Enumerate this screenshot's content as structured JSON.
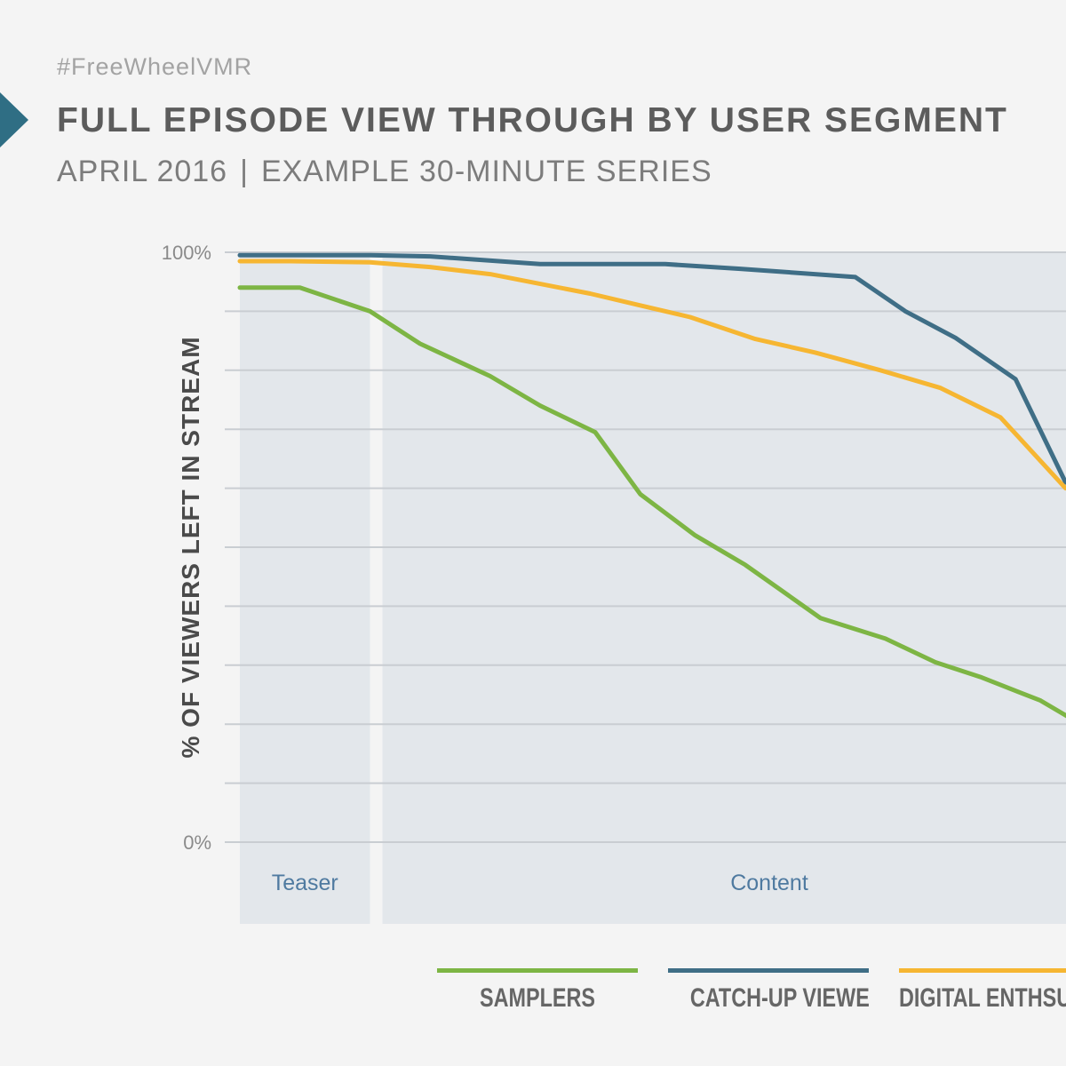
{
  "header": {
    "hashtag": "#FreeWheelVMR",
    "title": "FULL EPISODE VIEW THROUGH BY USER SEGMENT",
    "subtitle_left": "APRIL 2016",
    "subtitle_sep": "|",
    "subtitle_right": "EXAMPLE 30-MINUTE SERIES"
  },
  "colors": {
    "background": "#f4f4f4",
    "panel": "#e3e7eb",
    "grid": "#c9cdd2",
    "arrow": "#2f6e84",
    "region_label": "#4f7aa0"
  },
  "chart_data": {
    "type": "line",
    "ylabel": "% OF VIEWERS LEFT IN STREAM",
    "y_tick_labels": [
      "100%",
      "0%"
    ],
    "ylim": [
      0,
      100
    ],
    "xlim": [
      0,
      30
    ],
    "grid": true,
    "legend_position": "bottom",
    "regions": [
      {
        "label": "Teaser",
        "start": 0,
        "end": 2.6
      },
      {
        "label": "Content",
        "start": 2.85,
        "end": 30
      }
    ],
    "series": [
      {
        "name": "SAMPLERS",
        "color": "#7db544",
        "x": [
          0,
          1.2,
          2.6,
          3.6,
          5.0,
          6.0,
          7.1,
          8.0,
          9.1,
          10.1,
          11.6,
          12.9,
          13.9,
          14.8,
          16.0,
          17.0
        ],
        "y": [
          94,
          94,
          90,
          84.5,
          79,
          74,
          69.5,
          59,
          52,
          47,
          38,
          34.5,
          30.5,
          28,
          24,
          19
        ]
      },
      {
        "name": "CATCH-UP VIEWERS",
        "color": "#3f6e86",
        "x": [
          0,
          1.0,
          2.6,
          3.8,
          6.0,
          8.5,
          10.0,
          12.3,
          13.3,
          14.3,
          15.5,
          16.5
        ],
        "y": [
          99.5,
          99.5,
          99.5,
          99.3,
          98,
          98,
          97.2,
          95.8,
          90,
          85.5,
          78.5,
          61
        ]
      },
      {
        "name": "DIGITAL ENTHSUAISTS",
        "color": "#f6b632",
        "x": [
          0,
          1.0,
          2.6,
          3.8,
          5.0,
          7.0,
          8.0,
          9.0,
          10.3,
          11.5,
          12.8,
          14.0,
          15.2,
          16.5
        ],
        "y": [
          98.5,
          98.5,
          98.3,
          97.5,
          96.3,
          93,
          91,
          89,
          85.3,
          83,
          80,
          77,
          72,
          60
        ]
      }
    ]
  }
}
